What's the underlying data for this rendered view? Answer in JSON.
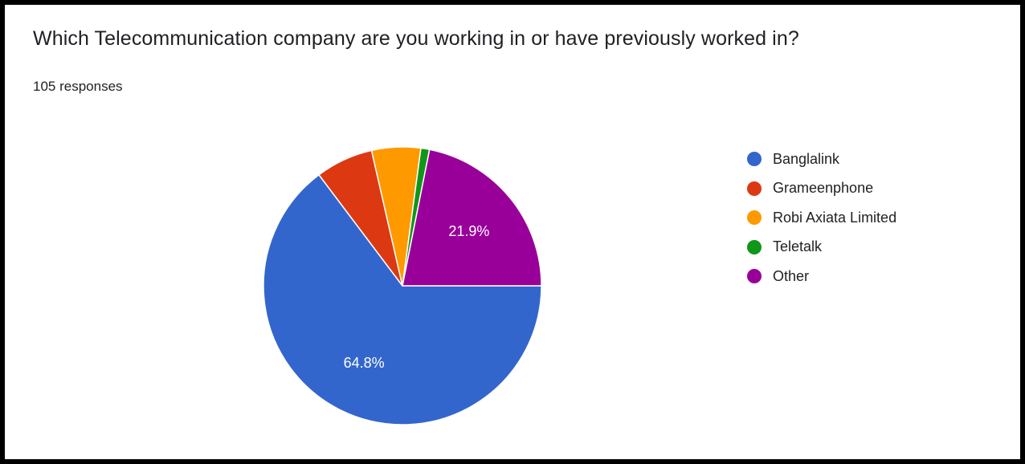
{
  "header": {
    "title": "Which Telecommunication company are you working in or have previously worked in?",
    "responses": "105 responses"
  },
  "chart_data": {
    "type": "pie",
    "categories": [
      "Banglalink",
      "Grameenphone",
      "Robi Axiata Limited",
      "Teletalk",
      "Other"
    ],
    "values": [
      64.8,
      6.7,
      5.7,
      1.0,
      21.9
    ],
    "colors": [
      "#3366cc",
      "#dc3912",
      "#ff9900",
      "#109618",
      "#990099"
    ],
    "data_labels": [
      "64.8%",
      "",
      "",
      "",
      "21.9%"
    ],
    "legend_position": "right"
  }
}
